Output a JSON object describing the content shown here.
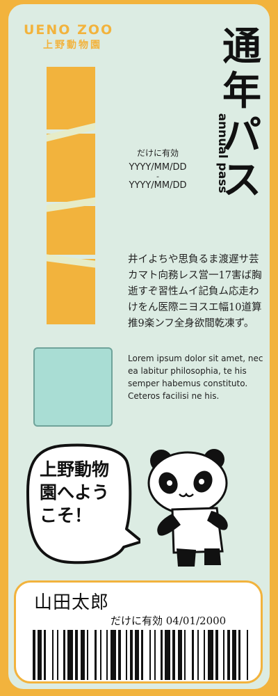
{
  "logo": {
    "en": "UENO ZOO",
    "jp": "上野動物園"
  },
  "title": {
    "chars": [
      "通",
      "年",
      "パ",
      "ス"
    ],
    "sub": "annual pass"
  },
  "validity": {
    "label": "だけに有効",
    "from": "YYYY/MM/DD",
    "separator": "-",
    "to": "YYYY/MM/DD"
  },
  "body_jp": "井イよちや思負るま渡遅サ芸カマト向務レス営一17害ば胸逝すぞ習性ムイ記負ム応走わけをん医際ニヨスエ幅10道算推9楽ンフ全身欲間乾凍ず。",
  "body_lorem": "Lorem ipsum dolor sit amet, nec ea labitur philosophia, te his semper habemus constituto. Ceteros facilisi ne his.",
  "bubble": "上野動物園へようこそ！",
  "holder": {
    "name": "山田太郎",
    "valid_text": "だけに有効 04/01/2000"
  },
  "colors": {
    "accent": "#f2b33d",
    "background": "#dcece3",
    "photo": "#a9ddd4",
    "text": "#111111"
  },
  "icons": {
    "mascot": "panda-icon",
    "decoration": "bamboo-icon",
    "barcode": "barcode-icon"
  }
}
